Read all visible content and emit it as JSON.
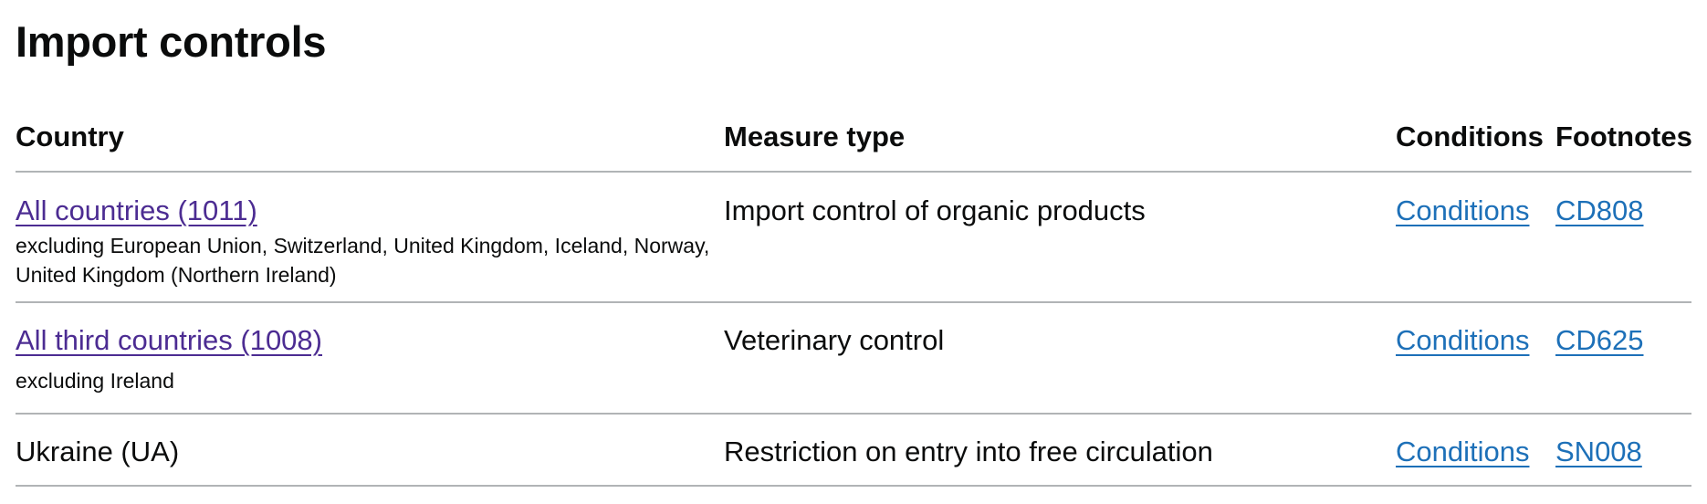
{
  "page": {
    "title": "Import controls"
  },
  "table": {
    "headers": {
      "country": "Country",
      "measure_type": "Measure type",
      "conditions": "Conditions",
      "footnotes": "Footnotes"
    },
    "rows": [
      {
        "country": "All countries (1011)",
        "country_is_link": true,
        "exclusion": "excluding European Union, Switzerland, United Kingdom, Iceland, Norway, United Kingdom (Northern Ireland)",
        "measure_type": "Import control of organic products",
        "conditions": "Conditions",
        "footnote": "CD808"
      },
      {
        "country": "All third countries (1008)",
        "country_is_link": true,
        "exclusion": "excluding Ireland",
        "measure_type": "Veterinary control",
        "conditions": "Conditions",
        "footnote": "CD625"
      },
      {
        "country": "Ukraine (UA)",
        "country_is_link": false,
        "exclusion": "",
        "measure_type": "Restriction on entry into free circulation",
        "conditions": "Conditions",
        "footnote": "SN008"
      }
    ]
  },
  "colors": {
    "link": "#1d70b8",
    "link_visited": "#4c2c92",
    "text": "#0b0c0c",
    "border": "#b1b4b6"
  }
}
